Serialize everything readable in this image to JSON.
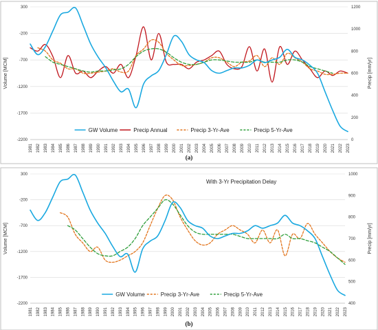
{
  "colors": {
    "gw": "#19a8e0",
    "precip_annual": "#c0161d",
    "precip_3yr": "#e2741c",
    "precip_5yr": "#2e9e3a",
    "grid": "#d9d9d9",
    "frame": "#b0b0b0"
  },
  "chart_data": [
    {
      "type": "line",
      "caption": "(a)",
      "title": "",
      "ylabel": "Volume [MCM]",
      "y2label": "Precip [mm/yr]",
      "ylim": [
        -2200,
        300
      ],
      "y2lim": [
        0,
        1200
      ],
      "yticks": [
        "300",
        "-200",
        "-700",
        "-1200",
        "-1700",
        "-2200"
      ],
      "y2ticks": [
        "1200",
        "1000",
        "800",
        "600",
        "400",
        "200",
        "0"
      ],
      "x": [
        "1981",
        "1982",
        "1983",
        "1984",
        "1985",
        "1986",
        "1987",
        "1988",
        "1989",
        "1990",
        "1991",
        "1992",
        "1993",
        "1994",
        "1995",
        "1996",
        "1997",
        "1998",
        "1999",
        "2000",
        "2001",
        "2002",
        "2003",
        "2004",
        "2005",
        "2006",
        "2007",
        "2008",
        "2009",
        "2010",
        "2011",
        "2012",
        "2013",
        "2014",
        "2015",
        "2016",
        "2017",
        "2018",
        "2019",
        "2020",
        "2021",
        "2022",
        "2023"
      ],
      "grid": true,
      "legend_position": "bottom",
      "series": [
        {
          "name": "GW Volume",
          "axis": "left",
          "style": "solid",
          "values": [
            -400,
            -600,
            -450,
            -150,
            150,
            200,
            280,
            -50,
            -400,
            -650,
            -850,
            -1100,
            -1300,
            -1250,
            -1600,
            -1150,
            -1000,
            -900,
            -600,
            -250,
            -350,
            -600,
            -700,
            -750,
            -900,
            -950,
            -900,
            -850,
            -850,
            -800,
            -700,
            -750,
            -700,
            -650,
            -500,
            -650,
            -700,
            -800,
            -950,
            -1300,
            -1650,
            -1950,
            -2050
          ]
        },
        {
          "name": "Precip Annual",
          "axis": "right",
          "style": "solid",
          "values": [
            830,
            800,
            860,
            750,
            560,
            760,
            600,
            620,
            560,
            620,
            660,
            600,
            680,
            560,
            760,
            1020,
            720,
            960,
            700,
            680,
            680,
            640,
            700,
            720,
            760,
            800,
            680,
            640,
            660,
            840,
            620,
            820,
            520,
            840,
            680,
            800,
            720,
            640,
            560,
            620,
            580,
            620,
            600
          ]
        },
        {
          "name": "Precip 3-Yr-Ave",
          "axis": "right",
          "style": "dashed",
          "values": [
            null,
            830,
            800,
            720,
            690,
            640,
            640,
            600,
            600,
            610,
            620,
            640,
            610,
            620,
            760,
            820,
            900,
            880,
            780,
            720,
            670,
            670,
            680,
            700,
            740,
            740,
            700,
            660,
            700,
            710,
            760,
            660,
            740,
            680,
            780,
            740,
            700,
            640,
            620,
            590,
            590,
            600,
            600
          ]
        },
        {
          "name": "Precip 5-Yr-Ave",
          "axis": "right",
          "style": "dashed",
          "values": [
            null,
            null,
            750,
            700,
            680,
            660,
            640,
            620,
            610,
            620,
            620,
            630,
            640,
            680,
            750,
            800,
            820,
            820,
            790,
            740,
            700,
            680,
            680,
            700,
            720,
            720,
            710,
            700,
            700,
            700,
            720,
            700,
            700,
            700,
            720,
            720,
            700,
            660,
            640,
            620,
            600,
            null,
            null
          ]
        }
      ]
    },
    {
      "type": "line",
      "caption": "(b)",
      "title": "With 3-Yr Precipitation Delay",
      "ylabel": "Volume [MCM]",
      "y2label": "Precip [mm/yr]",
      "ylim": [
        -2200,
        300
      ],
      "y2lim": [
        400,
        1000
      ],
      "yticks": [
        "300",
        "-200",
        "-700",
        "-1200",
        "-1700",
        "-2200"
      ],
      "y2ticks": [
        "1000",
        "900",
        "800",
        "700",
        "600",
        "500",
        "400"
      ],
      "x": [
        "1981",
        "1982",
        "1983",
        "1984",
        "1985",
        "1986",
        "1987",
        "1988",
        "1989",
        "1990",
        "1991",
        "1992",
        "1993",
        "1994",
        "1995",
        "1996",
        "1997",
        "1998",
        "1999",
        "2000",
        "2001",
        "2002",
        "2003",
        "2004",
        "2005",
        "2006",
        "2007",
        "2008",
        "2009",
        "2010",
        "2011",
        "2012",
        "2013",
        "2014",
        "2015",
        "2016",
        "2017",
        "2018",
        "2019",
        "2020",
        "2021",
        "2022",
        "2023"
      ],
      "grid": true,
      "legend_position": "bottom",
      "series": [
        {
          "name": "GW Volume",
          "axis": "left",
          "style": "solid",
          "values": [
            -400,
            -600,
            -450,
            -150,
            150,
            200,
            280,
            -50,
            -400,
            -650,
            -850,
            -1100,
            -1300,
            -1250,
            -1600,
            -1150,
            -1000,
            -900,
            -600,
            -250,
            -350,
            -600,
            -700,
            -750,
            -900,
            -950,
            -900,
            -850,
            -850,
            -800,
            -700,
            -750,
            -700,
            -650,
            -500,
            -650,
            -700,
            -800,
            -950,
            -1300,
            -1650,
            -1950,
            -2050
          ]
        },
        {
          "name": "Precip 3-Yr-Ave",
          "axis": "right",
          "style": "dashed",
          "values": [
            null,
            null,
            null,
            null,
            820,
            800,
            720,
            680,
            640,
            660,
            600,
            590,
            600,
            620,
            640,
            680,
            760,
            840,
            900,
            880,
            800,
            740,
            690,
            670,
            680,
            720,
            740,
            760,
            740,
            720,
            680,
            740,
            680,
            740,
            620,
            720,
            700,
            770,
            720,
            680,
            640,
            610,
            590
          ]
        },
        {
          "name": "Precip 5-Yr-Ave",
          "axis": "right",
          "style": "dashed",
          "values": [
            null,
            null,
            null,
            null,
            null,
            760,
            740,
            700,
            660,
            630,
            620,
            620,
            640,
            660,
            700,
            760,
            800,
            840,
            880,
            860,
            810,
            760,
            730,
            720,
            720,
            720,
            720,
            720,
            710,
            700,
            700,
            700,
            700,
            700,
            720,
            700,
            700,
            690,
            680,
            660,
            640,
            610,
            580
          ]
        }
      ]
    }
  ]
}
